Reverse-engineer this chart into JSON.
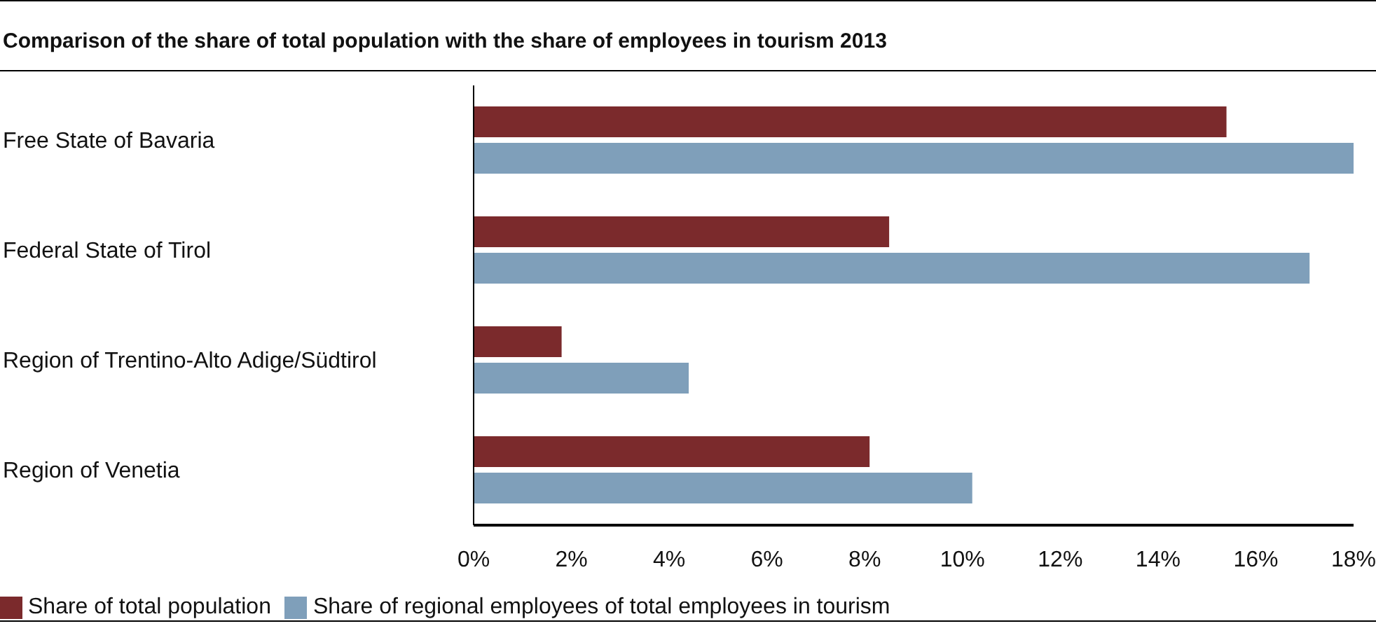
{
  "chart_data": {
    "type": "bar",
    "orientation": "horizontal",
    "title": "Comparison of the share of total population with the share of employees in tourism 2013",
    "categories": [
      "Free State of Bavaria",
      "Federal State of Tirol",
      "Region of Trentino-Alto Adige/Südtirol",
      "Region of Venetia"
    ],
    "series": [
      {
        "name": "Share of total population",
        "color": "#7b2a2c",
        "values": [
          15.4,
          8.5,
          1.8,
          8.1
        ]
      },
      {
        "name": "Share of regional employees of total employees in tourism",
        "color": "#7f9fba",
        "values": [
          18.0,
          17.1,
          4.4,
          10.2
        ]
      }
    ],
    "xlim": [
      0,
      18
    ],
    "xticks": [
      {
        "value": 0,
        "label": "0%"
      },
      {
        "value": 2,
        "label": "2%"
      },
      {
        "value": 4,
        "label": "4%"
      },
      {
        "value": 6,
        "label": "6%"
      },
      {
        "value": 8,
        "label": "8%"
      },
      {
        "value": 10,
        "label": "10%"
      },
      {
        "value": 12,
        "label": "12%"
      },
      {
        "value": 14,
        "label": "14%"
      },
      {
        "value": 16,
        "label": "16%"
      },
      {
        "value": 18,
        "label": "18%"
      }
    ],
    "grid": false,
    "legend": "bottom left"
  }
}
